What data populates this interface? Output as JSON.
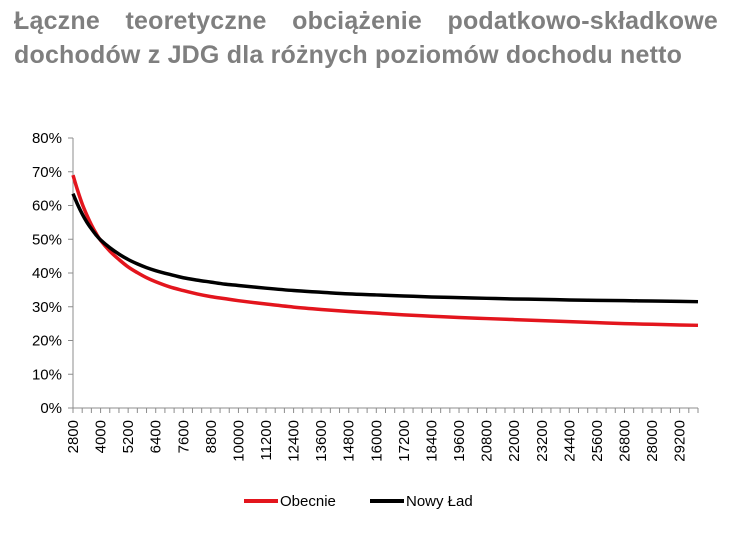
{
  "chart_data": {
    "type": "line",
    "title": "Łączne teoretyczne obciążenie podatkowo-składkowe dochodów z JDG dla różnych poziomów dochodu netto",
    "xlabel": "",
    "ylabel": "",
    "ylim": [
      0,
      0.8
    ],
    "yticks": [
      "0%",
      "10%",
      "20%",
      "30%",
      "40%",
      "50%",
      "60%",
      "70%",
      "80%"
    ],
    "categories": [
      "2800",
      "4000",
      "5200",
      "6400",
      "7600",
      "8800",
      "10000",
      "11200",
      "12400",
      "13600",
      "14800",
      "16000",
      "17200",
      "18400",
      "19600",
      "20800",
      "22000",
      "23200",
      "24400",
      "25600",
      "26800",
      "28000",
      "29200"
    ],
    "x": [
      2800,
      3000,
      3200,
      3400,
      3600,
      3800,
      4000,
      4400,
      4800,
      5200,
      5600,
      6000,
      6400,
      7000,
      7600,
      8200,
      8800,
      9400,
      10000,
      11200,
      12400,
      13600,
      14800,
      16000,
      17200,
      18400,
      19600,
      20800,
      22000,
      23200,
      24400,
      25600,
      26800,
      28000,
      29200,
      30000
    ],
    "series": [
      {
        "name": "Obecnie",
        "color": "#e3151d",
        "values": [
          0.69,
          0.645,
          0.605,
          0.572,
          0.543,
          0.518,
          0.497,
          0.465,
          0.44,
          0.418,
          0.401,
          0.386,
          0.374,
          0.359,
          0.348,
          0.338,
          0.33,
          0.324,
          0.318,
          0.308,
          0.299,
          0.292,
          0.286,
          0.281,
          0.276,
          0.272,
          0.268,
          0.265,
          0.262,
          0.259,
          0.256,
          0.253,
          0.25,
          0.248,
          0.246,
          0.245
        ]
      },
      {
        "name": "Nowy Ład",
        "color": "#000000",
        "values": [
          0.635,
          0.603,
          0.575,
          0.551,
          0.531,
          0.513,
          0.498,
          0.475,
          0.456,
          0.44,
          0.427,
          0.416,
          0.407,
          0.396,
          0.386,
          0.379,
          0.373,
          0.367,
          0.363,
          0.355,
          0.348,
          0.343,
          0.338,
          0.335,
          0.332,
          0.329,
          0.327,
          0.325,
          0.323,
          0.322,
          0.32,
          0.319,
          0.318,
          0.317,
          0.316,
          0.315
        ]
      }
    ],
    "grid": false,
    "legend": "bottom"
  }
}
